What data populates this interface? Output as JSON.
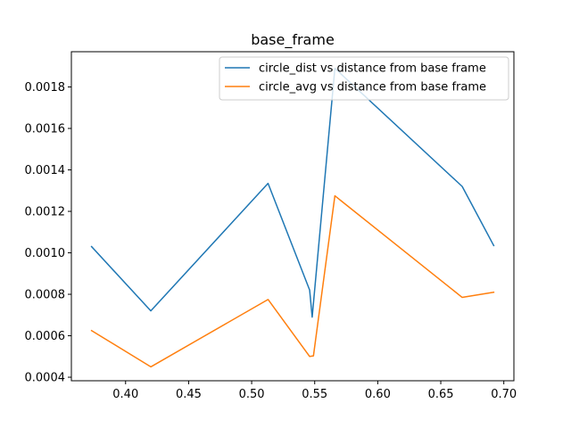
{
  "chart_data": {
    "type": "line",
    "title": "base_frame",
    "xlabel": "",
    "ylabel": "",
    "xlim": [
      0.357,
      0.708
    ],
    "ylim": [
      0.000383,
      0.00197
    ],
    "xticks": [
      0.4,
      0.45,
      0.5,
      0.55,
      0.6,
      0.65,
      0.7
    ],
    "xtick_labels": [
      "0.40",
      "0.45",
      "0.50",
      "0.55",
      "0.60",
      "0.65",
      "0.70"
    ],
    "yticks": [
      0.0004,
      0.0006,
      0.0008,
      0.001,
      0.0012,
      0.0014,
      0.0016,
      0.0018
    ],
    "ytick_labels": [
      "0.0004",
      "0.0006",
      "0.0008",
      "0.0010",
      "0.0012",
      "0.0014",
      "0.0016",
      "0.0018"
    ],
    "legend_position": "top-right",
    "grid": false,
    "series": [
      {
        "name": "circle_dist vs distance from base frame",
        "color": "#1f77b4",
        "points": [
          [
            0.373,
            0.00103
          ],
          [
            0.42,
            0.00072
          ],
          [
            0.513,
            0.001335
          ],
          [
            0.546,
            0.00082
          ],
          [
            0.548,
            0.00069
          ],
          [
            0.566,
            0.00189
          ],
          [
            0.667,
            0.00132
          ],
          [
            0.692,
            0.001035
          ]
        ]
      },
      {
        "name": "circle_avg vs distance from base frame",
        "color": "#ff7f0e",
        "points": [
          [
            0.373,
            0.000625
          ],
          [
            0.42,
            0.00045
          ],
          [
            0.513,
            0.000775
          ],
          [
            0.546,
            0.0005
          ],
          [
            0.549,
            0.000503
          ],
          [
            0.566,
            0.001275
          ],
          [
            0.667,
            0.000785
          ],
          [
            0.692,
            0.00081
          ]
        ]
      }
    ]
  }
}
